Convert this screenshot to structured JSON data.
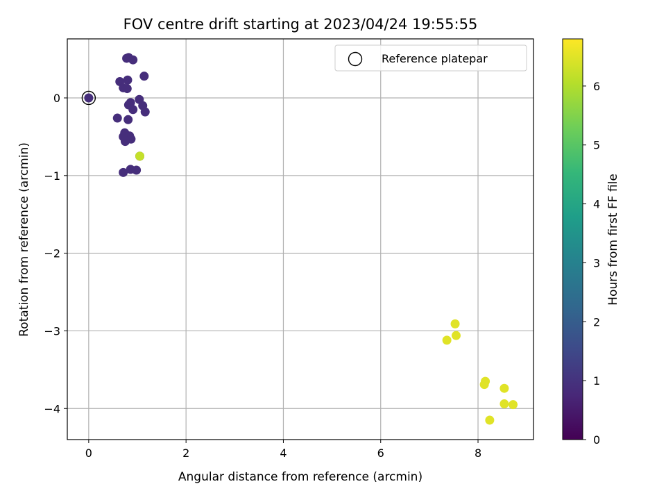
{
  "chart_data": {
    "type": "scatter",
    "title": "FOV centre drift starting at 2023/04/24 19:55:55",
    "xlabel": "Angular distance from reference (arcmin)",
    "ylabel": "Rotation from reference (arcmin)",
    "xlim": [
      -0.44,
      9.14
    ],
    "ylim": [
      -4.4,
      0.76
    ],
    "xticks": [
      0,
      2,
      4,
      6,
      8
    ],
    "yticks": [
      0,
      -1,
      -2,
      -3,
      -4
    ],
    "xtick_labels": [
      "0",
      "2",
      "4",
      "6",
      "8"
    ],
    "ytick_labels": [
      "0",
      "−1",
      "−2",
      "−3",
      "−4"
    ],
    "grid": true,
    "legend": {
      "location": "upper right",
      "label": "Reference platepar"
    },
    "reference_point": {
      "x": 0,
      "y": 0
    },
    "colorbar": {
      "label": "Hours from first FF file",
      "min": 0,
      "max": 6.8,
      "ticks": [
        0,
        1,
        2,
        3,
        4,
        5,
        6
      ],
      "tick_labels": [
        "0",
        "1",
        "2",
        "3",
        "4",
        "5",
        "6"
      ],
      "colormap": [
        "#440154",
        "#482878",
        "#3e4989",
        "#31688e",
        "#26828e",
        "#1f9e89",
        "#35b779",
        "#6ece58",
        "#b5de2b",
        "#fde725"
      ]
    },
    "points": [
      {
        "x": 0.0,
        "y": 0.0,
        "hours": 0.9
      },
      {
        "x": 0.78,
        "y": 0.51,
        "hours": 0.9
      },
      {
        "x": 0.82,
        "y": 0.52,
        "hours": 0.9
      },
      {
        "x": 0.91,
        "y": 0.49,
        "hours": 0.9
      },
      {
        "x": 1.14,
        "y": 0.28,
        "hours": 0.9
      },
      {
        "x": 0.64,
        "y": 0.21,
        "hours": 0.9
      },
      {
        "x": 0.8,
        "y": 0.23,
        "hours": 0.9
      },
      {
        "x": 0.71,
        "y": 0.13,
        "hours": 0.9
      },
      {
        "x": 0.79,
        "y": 0.12,
        "hours": 0.9
      },
      {
        "x": 1.04,
        "y": -0.02,
        "hours": 0.9
      },
      {
        "x": 0.86,
        "y": -0.06,
        "hours": 0.9
      },
      {
        "x": 0.82,
        "y": -0.09,
        "hours": 0.9
      },
      {
        "x": 1.11,
        "y": -0.1,
        "hours": 0.9
      },
      {
        "x": 0.91,
        "y": -0.15,
        "hours": 0.9
      },
      {
        "x": 1.16,
        "y": -0.18,
        "hours": 0.9
      },
      {
        "x": 0.59,
        "y": -0.26,
        "hours": 0.9
      },
      {
        "x": 0.81,
        "y": -0.28,
        "hours": 0.9
      },
      {
        "x": 0.74,
        "y": -0.45,
        "hours": 0.9
      },
      {
        "x": 0.71,
        "y": -0.5,
        "hours": 0.9
      },
      {
        "x": 0.84,
        "y": -0.49,
        "hours": 0.9
      },
      {
        "x": 0.87,
        "y": -0.53,
        "hours": 0.9
      },
      {
        "x": 0.75,
        "y": -0.56,
        "hours": 0.9
      },
      {
        "x": 0.86,
        "y": -0.92,
        "hours": 0.9
      },
      {
        "x": 0.98,
        "y": -0.93,
        "hours": 0.9
      },
      {
        "x": 0.71,
        "y": -0.96,
        "hours": 0.9
      },
      {
        "x": 1.05,
        "y": -0.75,
        "hours": 0.9
      },
      {
        "x": 1.05,
        "y": -0.75,
        "hours": 6.2
      },
      {
        "x": 7.53,
        "y": -2.91,
        "hours": 6.5
      },
      {
        "x": 7.55,
        "y": -3.06,
        "hours": 6.5
      },
      {
        "x": 7.36,
        "y": -3.12,
        "hours": 6.5
      },
      {
        "x": 8.15,
        "y": -3.65,
        "hours": 6.5
      },
      {
        "x": 8.13,
        "y": -3.69,
        "hours": 6.5
      },
      {
        "x": 8.54,
        "y": -3.74,
        "hours": 6.5
      },
      {
        "x": 8.54,
        "y": -3.94,
        "hours": 6.5
      },
      {
        "x": 8.72,
        "y": -3.95,
        "hours": 6.5
      },
      {
        "x": 8.24,
        "y": -4.15,
        "hours": 6.5
      }
    ]
  }
}
